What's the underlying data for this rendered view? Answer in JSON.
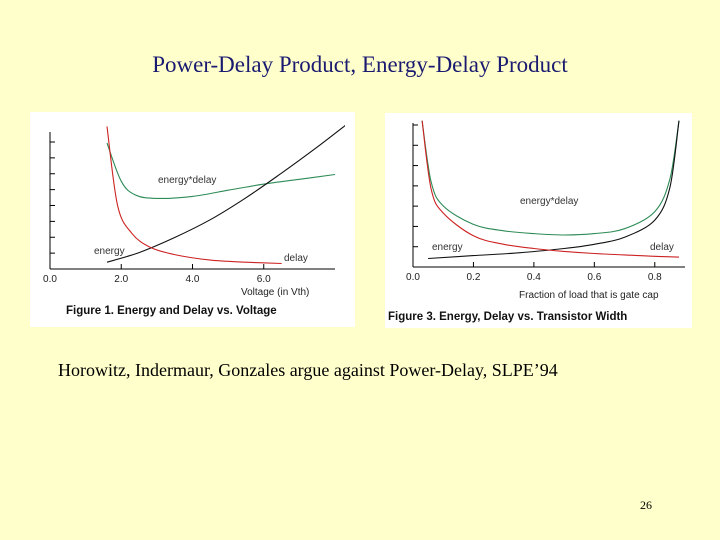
{
  "slide": {
    "title": "Power-Delay Product, Energy-Delay Product",
    "body_text": "Horowitz, Indermaur, Gonzales argue against Power-Delay, SLPE’94",
    "page_number": "26"
  },
  "chart_data": [
    {
      "type": "line",
      "caption": "Figure 1. Energy and Delay vs. Voltage",
      "xlabel": "Voltage (in Vth)",
      "ylabel": "",
      "x_ticks": [
        "0.0",
        "2.0",
        "4.0",
        "6.0"
      ],
      "xlim": [
        0,
        8
      ],
      "ylim": [
        0,
        10
      ],
      "series": [
        {
          "name": "energy*delay",
          "color": "#2e8b57",
          "x": [
            1.6,
            2.0,
            2.4,
            3.0,
            4.0,
            5.0,
            6.0,
            7.0,
            8.0
          ],
          "y": [
            9.2,
            6.4,
            5.4,
            5.15,
            5.3,
            5.75,
            6.2,
            6.55,
            6.9
          ]
        },
        {
          "name": "energy",
          "color": "#111111",
          "x": [
            1.6,
            2.5,
            3.5,
            4.5,
            5.5,
            6.5,
            7.5,
            8.3
          ],
          "y": [
            0.5,
            1.2,
            2.3,
            3.6,
            5.2,
            7.0,
            8.9,
            10.5
          ]
        },
        {
          "name": "delay",
          "color": "#cc2222",
          "x": [
            1.6,
            1.9,
            2.3,
            2.8,
            3.5,
            4.5,
            5.5,
            6.5
          ],
          "y": [
            10.4,
            4.6,
            2.6,
            1.6,
            1.05,
            0.65,
            0.5,
            0.4
          ]
        }
      ],
      "labels": {
        "energy_delay": "energy*delay",
        "energy": "energy",
        "delay": "delay"
      }
    },
    {
      "type": "line",
      "caption": "Figure 3. Energy, Delay vs. Transistor Width",
      "xlabel": "Fraction of load that is gate cap",
      "ylabel": "",
      "x_ticks": [
        "0.0",
        "0.2",
        "0.4",
        "0.6",
        "0.8"
      ],
      "xlim": [
        0,
        0.9
      ],
      "ylim": [
        0,
        10
      ],
      "series": [
        {
          "name": "energy*delay",
          "color": "#2e8b57",
          "x": [
            0.03,
            0.06,
            0.1,
            0.2,
            0.3,
            0.4,
            0.5,
            0.6,
            0.7,
            0.8,
            0.85,
            0.88
          ],
          "y": [
            10.3,
            6.0,
            4.3,
            3.0,
            2.55,
            2.35,
            2.25,
            2.35,
            2.7,
            3.9,
            6.2,
            10.3
          ]
        },
        {
          "name": "energy",
          "color": "#111111",
          "x": [
            0.05,
            0.2,
            0.35,
            0.5,
            0.6,
            0.7,
            0.8,
            0.85,
            0.88
          ],
          "y": [
            0.6,
            0.8,
            1.0,
            1.3,
            1.6,
            2.1,
            3.3,
            5.6,
            10.3
          ]
        },
        {
          "name": "delay",
          "color": "#cc2222",
          "x": [
            0.03,
            0.06,
            0.1,
            0.2,
            0.3,
            0.4,
            0.5,
            0.6,
            0.7,
            0.8,
            0.88
          ],
          "y": [
            10.3,
            5.5,
            3.8,
            2.2,
            1.6,
            1.3,
            1.1,
            0.95,
            0.85,
            0.75,
            0.7
          ]
        }
      ],
      "labels": {
        "energy_delay": "energy*delay",
        "energy": "energy",
        "delay": "delay"
      }
    }
  ]
}
